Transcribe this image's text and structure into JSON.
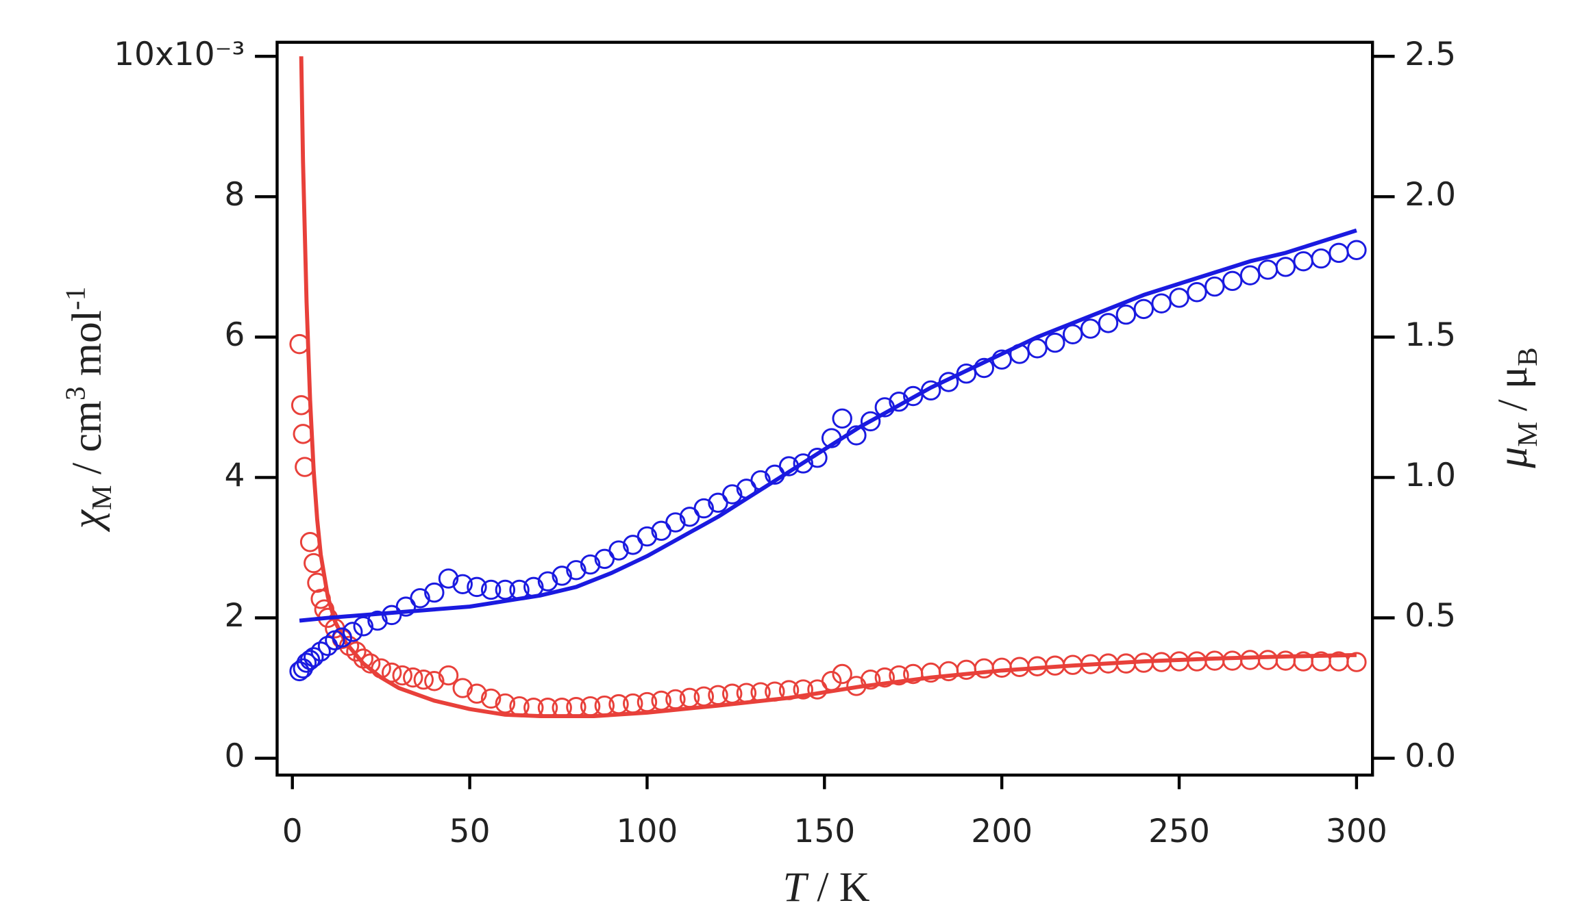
{
  "chart_data": {
    "type": "scatter",
    "xlabel": [
      "T",
      " / K"
    ],
    "ylabel": [
      "χ",
      "M",
      " / cm",
      "3",
      " mol",
      "-1"
    ],
    "y2label": [
      "μ",
      "M",
      " / μ",
      "B"
    ],
    "xlim": [
      -4.3,
      304.5
    ],
    "ylim": [
      -0.24,
      10.2
    ],
    "y2lim": [
      -0.06,
      2.55
    ],
    "xticks": [
      0,
      50,
      100,
      150,
      200,
      250,
      300
    ],
    "yticks": [
      0,
      2,
      4,
      6,
      8,
      {
        "value": 10,
        "label": "10x10⁻³"
      }
    ],
    "y2ticks": [
      {
        "value": 0,
        "label": "0.0"
      },
      0.5,
      {
        "value": 1,
        "label": "1.0"
      },
      1.5,
      {
        "value": 2,
        "label": "2.0"
      },
      2.5
    ],
    "series": [
      {
        "type": "scatter",
        "color": "#e8403a",
        "x": [
          2,
          2.5,
          3,
          3.5,
          5,
          6,
          7,
          8,
          9,
          10,
          12,
          14,
          16,
          18,
          20,
          22,
          25,
          28,
          31,
          34,
          37,
          40,
          44,
          48,
          52,
          56,
          60,
          64,
          68,
          72,
          76,
          80,
          84,
          88,
          92,
          96,
          100,
          104,
          108,
          112,
          116,
          120,
          124,
          128,
          132,
          136,
          140,
          144,
          148,
          152,
          155,
          159,
          163,
          167,
          171,
          175,
          180,
          185,
          190,
          195,
          200,
          205,
          210,
          215,
          220,
          225,
          230,
          235,
          240,
          245,
          250,
          255,
          260,
          265,
          270,
          275,
          280,
          285,
          290,
          295,
          300
        ],
        "values": [
          5.9,
          5.03,
          4.62,
          4.15,
          3.08,
          2.78,
          2.5,
          2.27,
          2.12,
          2.0,
          1.85,
          1.7,
          1.6,
          1.52,
          1.42,
          1.35,
          1.28,
          1.22,
          1.18,
          1.15,
          1.12,
          1.1,
          1.18,
          1.0,
          0.92,
          0.85,
          0.78,
          0.74,
          0.72,
          0.72,
          0.72,
          0.73,
          0.74,
          0.75,
          0.77,
          0.78,
          0.8,
          0.82,
          0.84,
          0.86,
          0.88,
          0.9,
          0.92,
          0.93,
          0.94,
          0.95,
          0.97,
          0.98,
          0.98,
          1.1,
          1.2,
          1.03,
          1.12,
          1.15,
          1.18,
          1.2,
          1.22,
          1.24,
          1.26,
          1.28,
          1.29,
          1.3,
          1.31,
          1.32,
          1.33,
          1.34,
          1.35,
          1.35,
          1.36,
          1.37,
          1.38,
          1.38,
          1.39,
          1.39,
          1.4,
          1.4,
          1.39,
          1.38,
          1.38,
          1.38,
          1.37
        ]
      },
      {
        "type": "line",
        "color": "#e8403a",
        "x": [
          2.5,
          3,
          4,
          5,
          6,
          7,
          8,
          10,
          12,
          15,
          20,
          25,
          30,
          40,
          50,
          60,
          70,
          80,
          85,
          100,
          120,
          140,
          160,
          180,
          200,
          220,
          240,
          260,
          280,
          300
        ],
        "values": [
          10,
          8.5,
          6.5,
          5.1,
          4.1,
          3.4,
          2.9,
          2.3,
          1.95,
          1.65,
          1.35,
          1.15,
          1.0,
          0.82,
          0.7,
          0.62,
          0.6,
          0.6,
          0.6,
          0.65,
          0.75,
          0.86,
          1.02,
          1.15,
          1.25,
          1.32,
          1.38,
          1.42,
          1.45,
          1.47
        ]
      },
      {
        "type": "scatter",
        "color": "#1a1ae0",
        "axis": "y2",
        "x": [
          2,
          3,
          4,
          5,
          6,
          8,
          10,
          12,
          14,
          17,
          20,
          24,
          28,
          32,
          36,
          40,
          44,
          48,
          52,
          56,
          60,
          64,
          68,
          72,
          76,
          80,
          84,
          88,
          92,
          96,
          100,
          104,
          108,
          112,
          116,
          120,
          124,
          128,
          132,
          136,
          140,
          144,
          148,
          152,
          155,
          159,
          163,
          167,
          171,
          175,
          180,
          185,
          190,
          195,
          200,
          205,
          210,
          215,
          220,
          225,
          230,
          235,
          240,
          245,
          250,
          255,
          260,
          265,
          270,
          275,
          280,
          285,
          290,
          295,
          300
        ],
        "values": [
          0.31,
          0.32,
          0.34,
          0.35,
          0.36,
          0.38,
          0.4,
          0.42,
          0.43,
          0.45,
          0.47,
          0.49,
          0.51,
          0.54,
          0.57,
          0.59,
          0.64,
          0.62,
          0.61,
          0.6,
          0.6,
          0.6,
          0.61,
          0.63,
          0.65,
          0.67,
          0.69,
          0.71,
          0.74,
          0.76,
          0.79,
          0.81,
          0.84,
          0.86,
          0.89,
          0.91,
          0.94,
          0.96,
          0.99,
          1.01,
          1.04,
          1.05,
          1.07,
          1.14,
          1.21,
          1.15,
          1.2,
          1.25,
          1.27,
          1.29,
          1.31,
          1.34,
          1.37,
          1.39,
          1.42,
          1.44,
          1.46,
          1.48,
          1.51,
          1.53,
          1.55,
          1.58,
          1.6,
          1.62,
          1.64,
          1.66,
          1.68,
          1.7,
          1.72,
          1.74,
          1.75,
          1.77,
          1.78,
          1.8,
          1.81
        ]
      },
      {
        "type": "line",
        "color": "#1a1ae0",
        "axis": "y2",
        "x": [
          2,
          10,
          20,
          30,
          40,
          50,
          60,
          70,
          80,
          90,
          100,
          110,
          120,
          130,
          140,
          150,
          160,
          170,
          180,
          190,
          200,
          210,
          220,
          230,
          240,
          250,
          260,
          270,
          280,
          290,
          300
        ],
        "values": [
          0.49,
          0.5,
          0.51,
          0.52,
          0.53,
          0.54,
          0.56,
          0.58,
          0.61,
          0.66,
          0.72,
          0.79,
          0.86,
          0.94,
          1.02,
          1.1,
          1.18,
          1.25,
          1.32,
          1.38,
          1.44,
          1.5,
          1.55,
          1.6,
          1.65,
          1.69,
          1.73,
          1.77,
          1.8,
          1.84,
          1.88
        ]
      }
    ]
  }
}
